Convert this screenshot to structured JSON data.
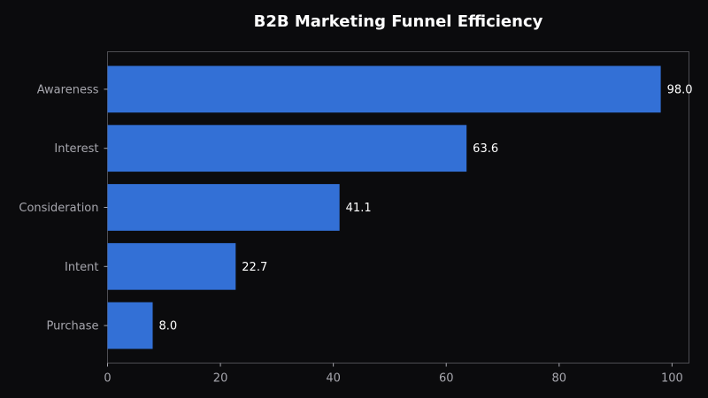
{
  "chart_data": {
    "type": "bar",
    "orientation": "horizontal",
    "title": "B2B Marketing Funnel Efficiency",
    "xlabel": "",
    "ylabel": "",
    "categories": [
      "Awareness",
      "Interest",
      "Consideration",
      "Intent",
      "Purchase"
    ],
    "values": [
      98.0,
      63.6,
      41.1,
      22.7,
      8.0
    ],
    "value_labels": [
      "98.0",
      "63.6",
      "41.1",
      "22.7",
      "8.0"
    ],
    "xlim": [
      0,
      103
    ],
    "xticks": [
      0,
      20,
      40,
      60,
      80,
      100
    ],
    "xtick_labels": [
      "0",
      "20",
      "40",
      "60",
      "80",
      "100"
    ],
    "grid": false,
    "legend": "none",
    "colors": {
      "background": "#0b0b0d",
      "bar": "#3370d6",
      "axis": "#4d4d52",
      "tick_text": "#a6a6ad",
      "title_text": "#ffffff",
      "value_text": "#ffffff"
    }
  }
}
